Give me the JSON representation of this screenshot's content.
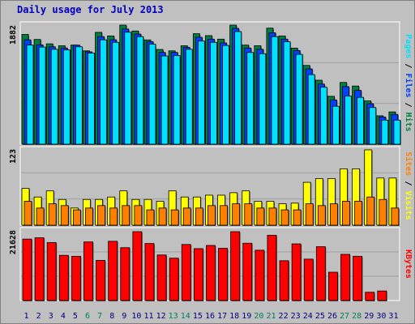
{
  "title": "Daily usage for July 2013",
  "colors": {
    "hits": "#008040",
    "files": "#0040ff",
    "pages": "#00e0ff",
    "visits": "#ffff00",
    "sites": "#ff8000",
    "kbytes": "#ff0000",
    "weekend_label": "#00805c",
    "weekday_label": "#000080"
  },
  "chart_data": [
    {
      "type": "bar",
      "title": "",
      "max_label": "1882",
      "ylim": [
        0,
        1882
      ],
      "categories": [
        "1",
        "2",
        "3",
        "4",
        "5",
        "6",
        "7",
        "8",
        "9",
        "10",
        "11",
        "12",
        "13",
        "14",
        "15",
        "16",
        "17",
        "18",
        "19",
        "20",
        "21",
        "22",
        "23",
        "24",
        "25",
        "26",
        "27",
        "28",
        "29",
        "30",
        "31"
      ],
      "weekend_days": [
        "6",
        "7",
        "13",
        "14",
        "20",
        "21",
        "27",
        "28"
      ],
      "legend": [
        "Pages",
        "Files",
        "Hits"
      ],
      "series": [
        {
          "name": "Hits",
          "values": [
            1735,
            1655,
            1586,
            1556,
            1566,
            1475,
            1768,
            1711,
            1882,
            1789,
            1648,
            1497,
            1475,
            1556,
            1746,
            1716,
            1660,
            1882,
            1566,
            1556,
            1834,
            1711,
            1518,
            1245,
            1011,
            757,
            976,
            919,
            684,
            449,
            510
          ]
        },
        {
          "name": "Files",
          "values": [
            1650,
            1570,
            1540,
            1520,
            1566,
            1460,
            1700,
            1650,
            1820,
            1740,
            1620,
            1450,
            1450,
            1530,
            1690,
            1660,
            1600,
            1830,
            1520,
            1500,
            1760,
            1660,
            1480,
            1190,
            950,
            700,
            910,
            850,
            640,
            430,
            470
          ]
        },
        {
          "name": "Pages",
          "values": [
            1566,
            1535,
            1500,
            1490,
            1540,
            1440,
            1650,
            1610,
            1770,
            1700,
            1580,
            1395,
            1400,
            1500,
            1630,
            1610,
            1560,
            1780,
            1450,
            1430,
            1700,
            1620,
            1420,
            1100,
            900,
            600,
            760,
            740,
            580,
            380,
            380
          ]
        }
      ]
    },
    {
      "type": "bar",
      "title": "",
      "max_label": "123",
      "ylim": [
        0,
        123
      ],
      "categories": [
        "1",
        "2",
        "3",
        "4",
        "5",
        "6",
        "7",
        "8",
        "9",
        "10",
        "11",
        "12",
        "13",
        "14",
        "15",
        "16",
        "17",
        "18",
        "19",
        "20",
        "21",
        "22",
        "23",
        "24",
        "25",
        "26",
        "27",
        "28",
        "29",
        "30",
        "31"
      ],
      "legend": [
        "Sites",
        "Visits"
      ],
      "series": [
        {
          "name": "Visits",
          "values": [
            60,
            46,
            56,
            42,
            28,
            42,
            42,
            46,
            56,
            42,
            42,
            39,
            56,
            46,
            46,
            49,
            49,
            53,
            56,
            39,
            39,
            35,
            36,
            70,
            76,
            76,
            92,
            92,
            123,
            77,
            77
          ]
        },
        {
          "name": "Sites",
          "values": [
            39,
            28,
            35,
            32,
            25,
            28,
            32,
            28,
            32,
            32,
            25,
            28,
            25,
            28,
            28,
            32,
            32,
            35,
            35,
            28,
            28,
            25,
            25,
            35,
            32,
            35,
            39,
            39,
            46,
            42,
            28
          ]
        }
      ]
    },
    {
      "type": "bar",
      "title": "",
      "max_label": "21628",
      "ylim": [
        0,
        21628
      ],
      "categories": [
        "1",
        "2",
        "3",
        "4",
        "5",
        "6",
        "7",
        "8",
        "9",
        "10",
        "11",
        "12",
        "13",
        "14",
        "15",
        "16",
        "17",
        "18",
        "19",
        "20",
        "21",
        "22",
        "23",
        "24",
        "25",
        "26",
        "27",
        "28",
        "29",
        "30",
        "31"
      ],
      "legend": [
        "KBytes"
      ],
      "series": [
        {
          "name": "KBytes",
          "values": [
            19300,
            19700,
            18200,
            14200,
            13900,
            18400,
            12600,
            18600,
            16600,
            21628,
            17900,
            14300,
            13300,
            17600,
            16300,
            17300,
            16400,
            21628,
            18000,
            15800,
            20500,
            12500,
            17800,
            13000,
            16900,
            8900,
            14500,
            13900,
            2600,
            3000,
            0
          ]
        }
      ]
    }
  ]
}
